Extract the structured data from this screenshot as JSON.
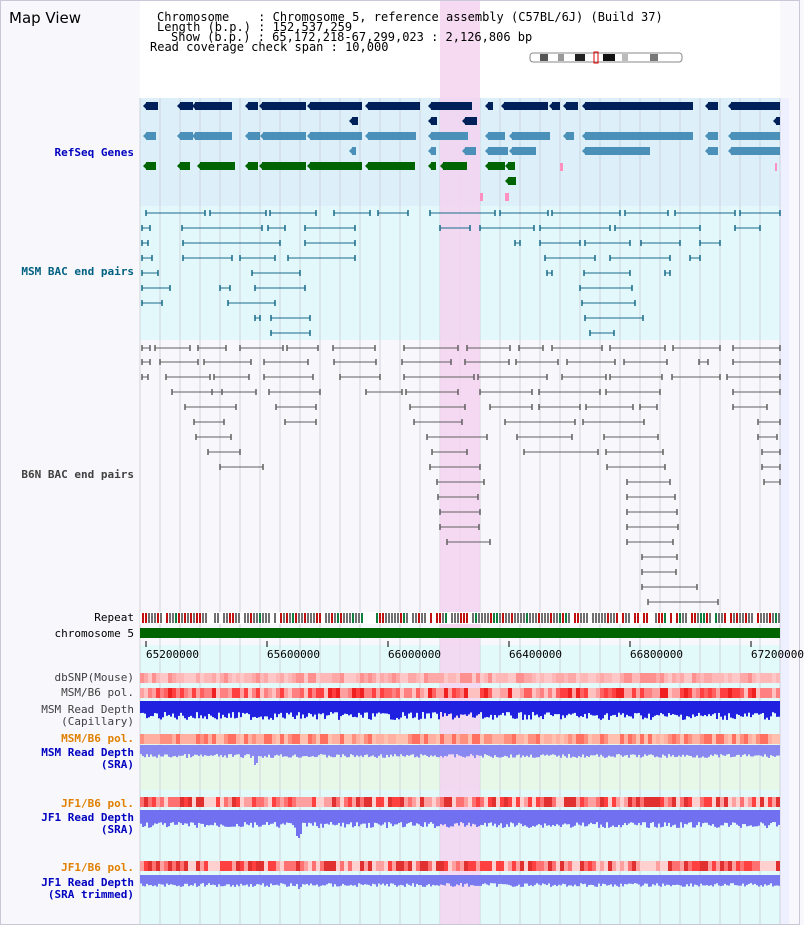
{
  "title": "Map View",
  "info": {
    "chromosome": "Chromosome    : Chromosome 5, reference assembly (C57BL/6J) (Build 37)",
    "length": "Length (b.p.) : 152,537,259",
    "show": "Show (b.p.) : 65,172,218-67,299,023 : 2,126,806 bp",
    "coverage": "Read coverage check span : 10,000"
  },
  "tracks": {
    "refseq": "RefSeq Genes",
    "msm_bac": "MSM BAC end pairs",
    "b6n_bac": "B6N BAC end pairs",
    "repeat": "Repeat",
    "chromosome": "chromosome 5",
    "dbsnp": "dbSNP(Mouse)",
    "msm_b6_pol_1": "MSM/B6 pol.",
    "msm_depth_cap_1": "MSM Read Depth",
    "msm_depth_cap_2": "(Capillary)",
    "msm_b6_pol_2": "MSM/B6 pol.",
    "msm_depth_sra_1": "MSM Read Depth",
    "msm_depth_sra_2": "(SRA)",
    "jf1_b6_pol_1": "JF1/B6 pol.",
    "jf1_depth_sra_1": "JF1 Read Depth",
    "jf1_depth_sra_2": "(SRA)",
    "jf1_b6_pol_2": "JF1/B6 pol.",
    "jf1_depth_trim_1": "JF1 Read Depth",
    "jf1_depth_trim_2": "(SRA trimmed)"
  },
  "axis_ticks": [
    "65200000",
    "65600000",
    "66000000",
    "66400000",
    "66800000",
    "67200000"
  ],
  "colors": {
    "label_blue": "#0000c0",
    "label_teal": "#006080",
    "label_gray": "#404040",
    "label_orange": "#e08000",
    "highlight": "#f5d4f0",
    "gene_navy": "#00205a",
    "gene_mid": "#4a90b8",
    "gene_green": "#006400",
    "msm_pair": "#1a6a8a",
    "b6n_pair": "#606060",
    "chromosome_bar": "#006400"
  }
}
